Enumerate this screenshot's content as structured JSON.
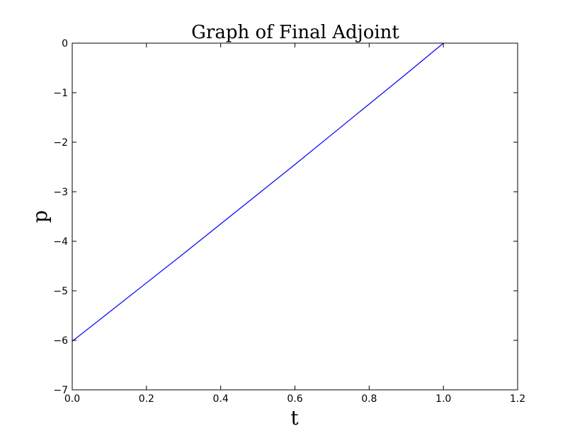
{
  "chart_data": {
    "type": "line",
    "title": "Graph of Final Adjoint",
    "xlabel": "t",
    "ylabel": "p",
    "xlim": [
      0.0,
      1.2
    ],
    "ylim": [
      -7,
      0
    ],
    "xticks": [
      "0.0",
      "0.2",
      "0.4",
      "0.6",
      "0.8",
      "1.0",
      "1.2"
    ],
    "yticks": [
      "0",
      "−1",
      "−2",
      "−3",
      "−4",
      "−5",
      "−6",
      "−7"
    ],
    "grid": false,
    "series": [
      {
        "color": "#0000ff",
        "x": [
          0.0,
          0.1,
          0.2,
          0.3,
          0.4,
          0.5,
          0.6,
          0.7,
          0.8,
          0.9,
          1.0
        ],
        "y": [
          -6.02,
          -5.43,
          -4.84,
          -4.25,
          -3.65,
          -3.05,
          -2.45,
          -1.84,
          -1.23,
          -0.62,
          0.0
        ]
      }
    ]
  }
}
